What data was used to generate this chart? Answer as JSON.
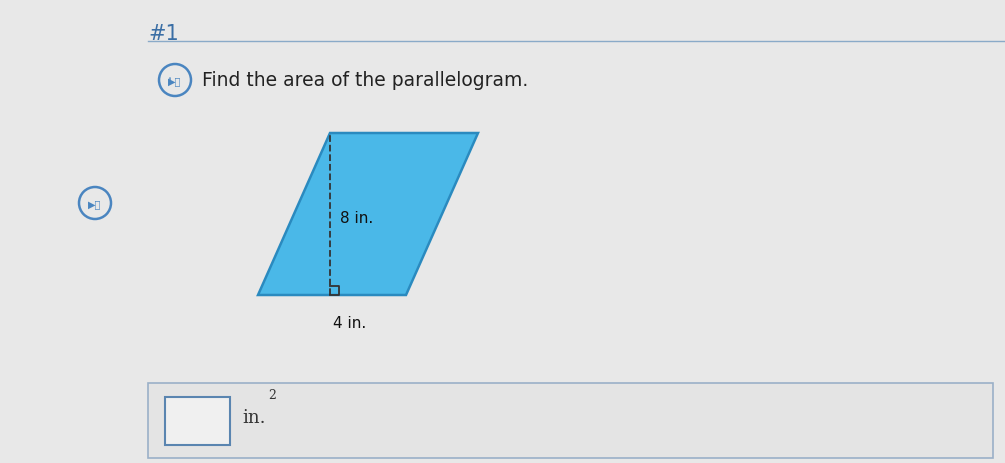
{
  "background_color": "#e8e8e8",
  "title_text": "#1",
  "title_color": "#3a6ea5",
  "title_fontsize": 15,
  "separator_color": "#8aaac8",
  "instruction_text": "Find the area of the parallelogram.",
  "instruction_fontsize": 13.5,
  "instruction_color": "#222222",
  "speaker_circle_color": "#4a85c0",
  "speaker_icon_color": "#4a85c0",
  "parallelogram_fill": "#4ab8e8",
  "parallelogram_edge": "#2a8abf",
  "height_label": "8 in.",
  "base_label": "4 in.",
  "label_color": "#111111",
  "label_fontsize": 11,
  "height_line_color": "#333333",
  "answer_box_bg": "#e4e4e4",
  "answer_box_border": "#9ab0c8",
  "input_box_border": "#5a85b0",
  "input_box_bg": "#f0f0f0",
  "answer_text_color": "#333333",
  "answer_fontsize": 13
}
